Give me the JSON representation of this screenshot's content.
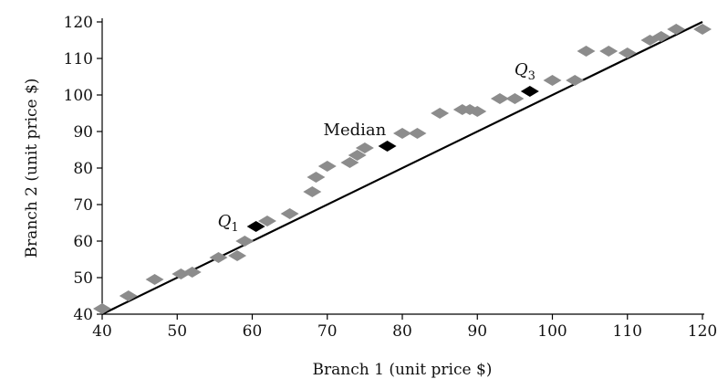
{
  "chart_data": {
    "type": "scatter",
    "xlabel": "Branch 1 (unit price $)",
    "ylabel": "Branch 2 (unit price $)",
    "xlim": [
      40,
      120
    ],
    "ylim": [
      40,
      120
    ],
    "x_ticks": [
      40,
      50,
      60,
      70,
      80,
      90,
      100,
      110,
      120
    ],
    "y_ticks": [
      40,
      50,
      60,
      70,
      80,
      90,
      100,
      110,
      120
    ],
    "grid": false,
    "legend": "none",
    "reference_line": {
      "from": [
        40,
        40
      ],
      "to": [
        120,
        120
      ]
    },
    "series": [
      {
        "marker": "diamond",
        "color": "#8c8c8c",
        "points": [
          [
            40,
            41.5
          ],
          [
            43.5,
            45
          ],
          [
            47,
            49.5
          ],
          [
            50.5,
            51
          ],
          [
            52,
            51.5
          ],
          [
            55.5,
            55.5
          ],
          [
            58,
            56
          ],
          [
            59,
            60
          ],
          [
            62,
            65.5
          ],
          [
            65,
            67.5
          ],
          [
            68,
            73.5
          ],
          [
            68.5,
            77.5
          ],
          [
            70,
            80.5
          ],
          [
            73,
            81.5
          ],
          [
            74,
            83.5
          ],
          [
            75,
            85.5
          ],
          [
            80,
            89.5
          ],
          [
            82,
            89.5
          ],
          [
            85,
            95
          ],
          [
            88,
            96
          ],
          [
            89,
            96
          ],
          [
            90,
            95.5
          ],
          [
            93,
            99
          ],
          [
            95,
            99
          ],
          [
            100,
            104
          ],
          [
            103,
            104
          ],
          [
            104.5,
            112
          ],
          [
            107.5,
            112
          ],
          [
            110,
            111.5
          ],
          [
            113,
            115
          ],
          [
            114.5,
            116
          ],
          [
            116.5,
            118
          ],
          [
            120,
            118
          ]
        ]
      },
      {
        "marker": "diamond",
        "color": "#000000",
        "points": [
          [
            60.5,
            64
          ],
          [
            78,
            86
          ],
          [
            97,
            101
          ]
        ]
      }
    ],
    "annotations": [
      {
        "text": "Q",
        "sub": "1",
        "x": 60.5,
        "y": 64
      },
      {
        "text": "Median",
        "x": 78,
        "y": 86
      },
      {
        "text": "Q",
        "sub": "3",
        "x": 97,
        "y": 101
      }
    ]
  }
}
